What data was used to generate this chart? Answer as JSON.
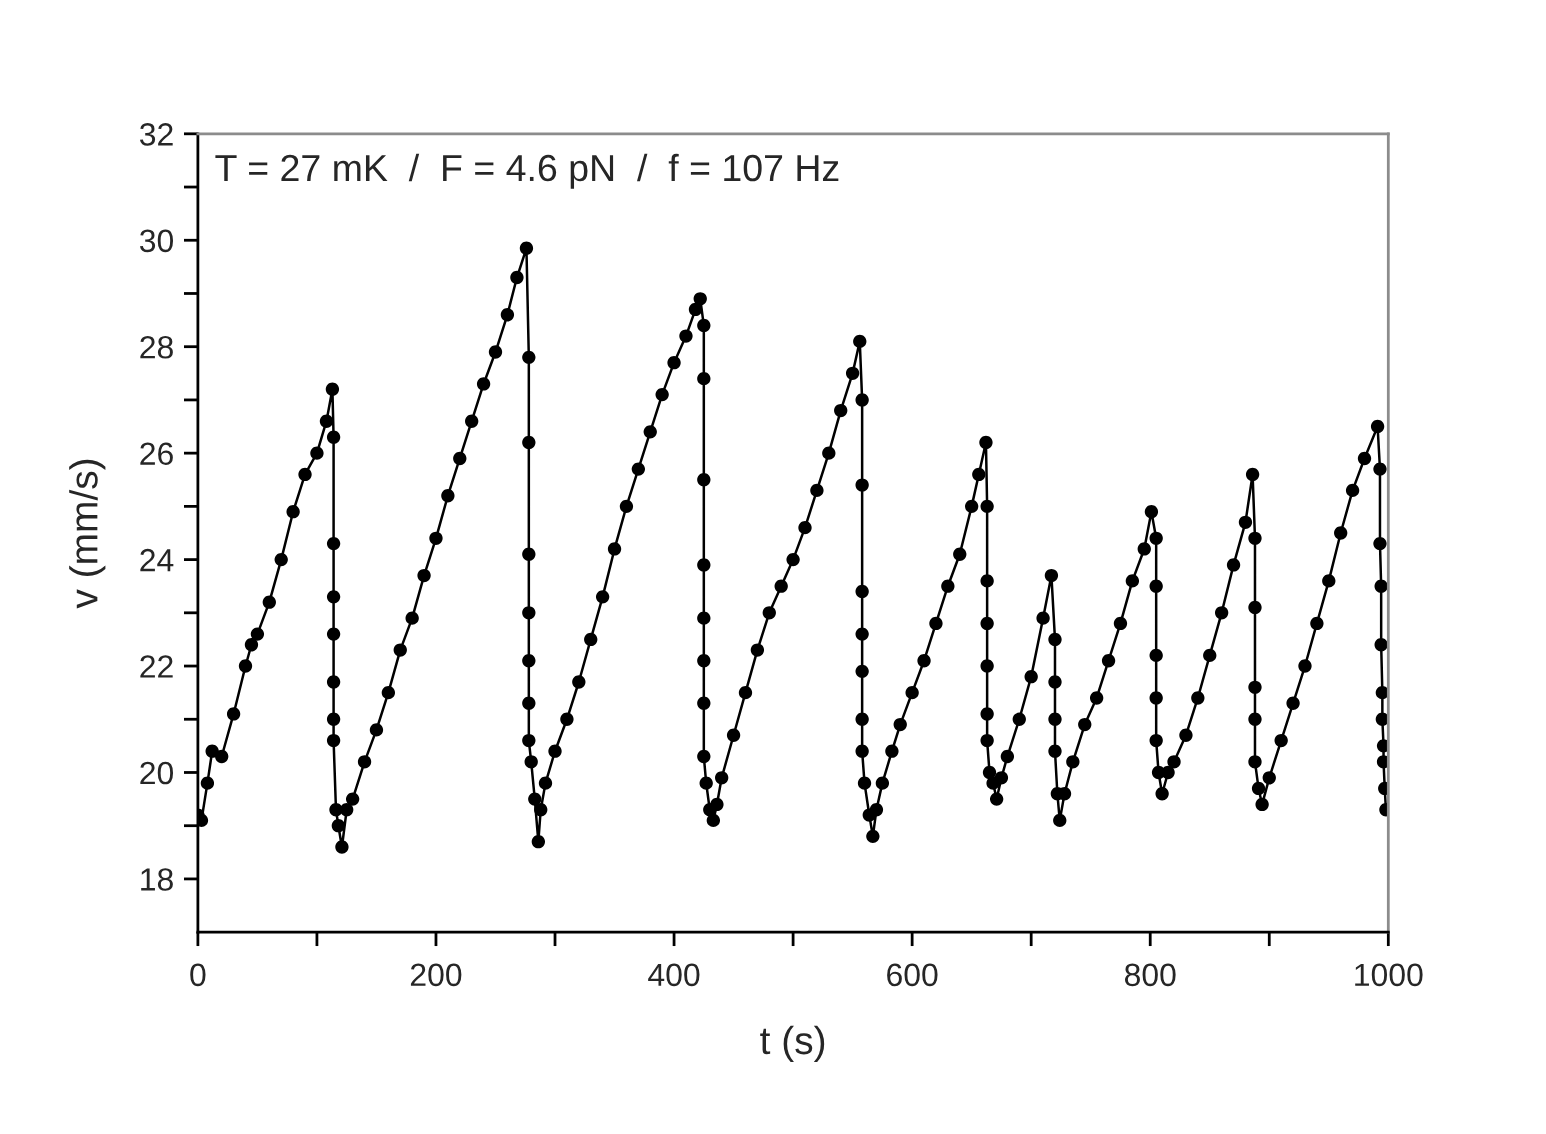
{
  "chart_data": {
    "type": "line",
    "xlabel": "t (s)",
    "ylabel": "v (mm/s)",
    "annotations": [
      "T = 27 mK  /  F = 4.6 pN  /  f = 107 Hz"
    ],
    "series": [
      {
        "color": "#000000",
        "x": [
          0,
          3,
          8,
          12,
          20,
          30,
          40,
          45,
          50,
          60,
          70,
          80,
          90,
          100,
          108,
          113,
          114,
          114,
          114,
          114,
          114,
          114,
          114,
          116,
          118,
          121,
          125,
          130,
          140,
          150,
          160,
          170,
          180,
          190,
          200,
          210,
          220,
          230,
          240,
          250,
          260,
          268,
          276,
          278,
          278,
          278,
          278,
          278,
          278,
          278,
          280,
          283,
          286,
          288,
          292,
          300,
          310,
          320,
          330,
          340,
          350,
          360,
          370,
          380,
          390,
          400,
          410,
          418,
          422,
          425,
          425,
          425,
          425,
          425,
          425,
          425,
          425,
          427,
          430,
          433,
          436,
          440,
          450,
          460,
          470,
          480,
          490,
          500,
          510,
          520,
          530,
          540,
          550,
          556,
          558,
          558,
          558,
          558,
          558,
          558,
          558,
          560,
          564,
          567,
          570,
          575,
          583,
          590,
          600,
          610,
          620,
          630,
          640,
          650,
          656,
          662,
          663,
          663,
          663,
          663,
          663,
          663,
          665,
          668,
          671,
          675,
          680,
          690,
          700,
          710,
          717,
          720,
          720,
          720,
          720,
          722,
          724,
          728,
          735,
          745,
          755,
          765,
          775,
          785,
          795,
          801,
          805,
          805,
          805,
          805,
          805,
          807,
          810,
          815,
          820,
          830,
          840,
          850,
          860,
          870,
          880,
          886,
          888,
          888,
          888,
          888,
          888,
          891,
          894,
          900,
          910,
          920,
          930,
          940,
          950,
          960,
          970,
          980,
          991,
          993,
          993,
          994,
          994,
          995,
          995,
          996,
          996,
          997,
          998
        ],
        "values": [
          19.2,
          19.1,
          19.8,
          20.4,
          20.3,
          21.1,
          22.0,
          22.4,
          22.6,
          23.2,
          24.0,
          24.9,
          25.6,
          26.0,
          26.6,
          27.2,
          26.3,
          24.3,
          23.3,
          22.6,
          21.7,
          21.0,
          20.6,
          19.3,
          19.0,
          18.6,
          19.3,
          19.5,
          20.2,
          20.8,
          21.5,
          22.3,
          22.9,
          23.7,
          24.4,
          25.2,
          25.9,
          26.6,
          27.3,
          27.9,
          28.6,
          29.3,
          29.85,
          27.8,
          26.2,
          24.1,
          23.0,
          22.1,
          21.3,
          20.6,
          20.2,
          19.5,
          18.7,
          19.3,
          19.8,
          20.4,
          21.0,
          21.7,
          22.5,
          23.3,
          24.2,
          25.0,
          25.7,
          26.4,
          27.1,
          27.7,
          28.2,
          28.7,
          28.9,
          28.4,
          27.4,
          25.5,
          23.9,
          22.9,
          22.1,
          21.3,
          20.3,
          19.8,
          19.3,
          19.1,
          19.4,
          19.9,
          20.7,
          21.5,
          22.3,
          23.0,
          23.5,
          24.0,
          24.6,
          25.3,
          26.0,
          26.8,
          27.5,
          28.1,
          27.0,
          25.4,
          23.4,
          22.6,
          21.9,
          21.0,
          20.4,
          19.8,
          19.2,
          18.8,
          19.3,
          19.8,
          20.4,
          20.9,
          21.5,
          22.1,
          22.8,
          23.5,
          24.1,
          25.0,
          25.6,
          26.2,
          25.0,
          23.6,
          22.8,
          22.0,
          21.1,
          20.6,
          20.0,
          19.8,
          19.5,
          19.9,
          20.3,
          21.0,
          21.8,
          22.9,
          23.7,
          22.5,
          21.7,
          21.0,
          20.4,
          19.6,
          19.1,
          19.6,
          20.2,
          20.9,
          21.4,
          22.1,
          22.8,
          23.6,
          24.2,
          24.9,
          24.4,
          23.5,
          22.2,
          21.4,
          20.6,
          20.0,
          19.6,
          20.0,
          20.2,
          20.7,
          21.4,
          22.2,
          23.0,
          23.9,
          24.7,
          25.6,
          24.4,
          23.1,
          21.6,
          21.0,
          20.2,
          19.7,
          19.4,
          19.9,
          20.6,
          21.3,
          22.0,
          22.8,
          23.6,
          24.5,
          25.3,
          25.9,
          26.5,
          25.7,
          24.3,
          23.5,
          22.4,
          21.5,
          21.0,
          20.5,
          20.2,
          19.7,
          19.3
        ]
      }
    ],
    "xlim": [
      0,
      1000
    ],
    "xticks": [
      0,
      {
        "value": 100,
        "label": null
      },
      200,
      {
        "value": 300,
        "label": null
      },
      400,
      {
        "value": 500,
        "label": null
      },
      600,
      {
        "value": 700,
        "label": null
      },
      800,
      {
        "value": 900,
        "label": null
      },
      1000
    ],
    "ylim": [
      17,
      32
    ],
    "yticks": [
      18,
      {
        "value": 19,
        "label": null
      },
      20,
      {
        "value": 21,
        "label": null
      },
      22,
      {
        "value": 23,
        "label": null
      },
      24,
      {
        "value": 25,
        "label": null
      },
      26,
      {
        "value": 27,
        "label": null
      },
      28,
      {
        "value": 29,
        "label": null
      },
      30,
      {
        "value": 31,
        "label": null
      },
      32
    ],
    "marker": "circle",
    "line_style": "solid",
    "grid": false
  }
}
